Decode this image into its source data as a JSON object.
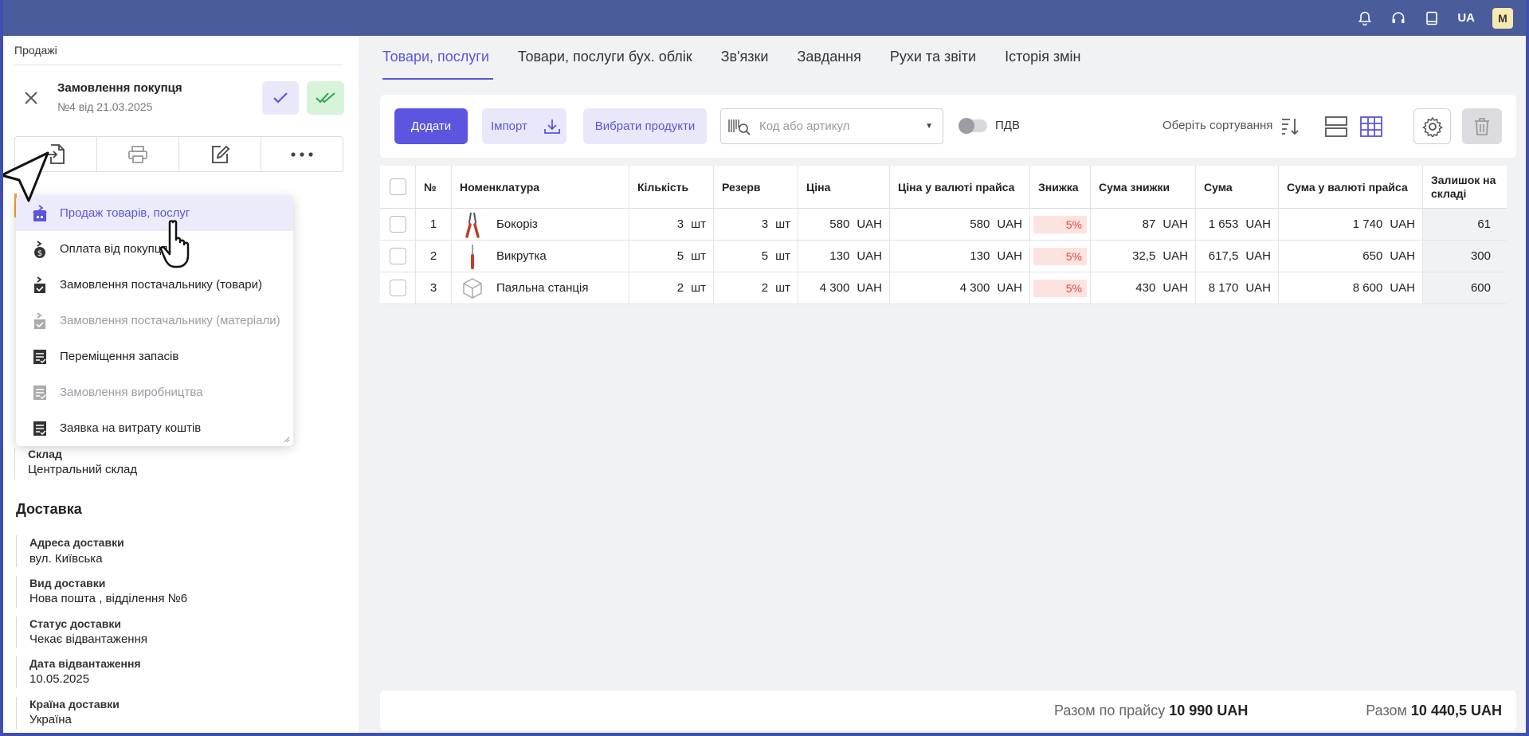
{
  "topbar": {
    "lang": "UA",
    "avatar": "M",
    "icons": [
      "bell-icon",
      "headset-icon",
      "book-icon"
    ]
  },
  "left": {
    "breadcrumb": "Продажі",
    "doc_title": "Замовлення покупця",
    "doc_subtitle": "№4 від 21.03.2025",
    "warehouse_label": "Склад",
    "warehouse_value": "Центральний склад",
    "delivery_title": "Доставка",
    "delivery": [
      {
        "label": "Адреса доставки",
        "value": "вул. Київська"
      },
      {
        "label": "Вид доставки",
        "value": "Нова пошта , відділення №6"
      },
      {
        "label": "Статус доставки",
        "value": "Чекає відвантаження"
      },
      {
        "label": "Дата відвантаження",
        "value": "10.05.2025"
      },
      {
        "label": "Країна доставки",
        "value": "Україна"
      }
    ]
  },
  "menu": {
    "items": [
      {
        "label": "Продаж товарів, послуг",
        "state": "active"
      },
      {
        "label": "Оплата від покупця",
        "state": "normal"
      },
      {
        "label": "Замовлення постачальнику (товари)",
        "state": "normal"
      },
      {
        "label": "Замовлення постачальнику (матеріали)",
        "state": "disabled"
      },
      {
        "label": "Переміщення запасів",
        "state": "normal"
      },
      {
        "label": "Замовлення виробництва",
        "state": "disabled"
      },
      {
        "label": "Заявка на витрату коштів",
        "state": "normal"
      }
    ]
  },
  "tabs": [
    "Товари, послуги",
    "Товари, послуги бух. облік",
    "Зв'язки",
    "Завдання",
    "Рухи та звіти",
    "Історія змін"
  ],
  "toolbar": {
    "add_label": "Додати",
    "import_label": "Імпорт",
    "choose_label": "Вибрати продукти",
    "search_placeholder": "Код або артикул",
    "vat_label": "ПДВ",
    "sort_label": "Оберіть сортування"
  },
  "table": {
    "headers": [
      "№",
      "Номенклатура",
      "Кількість",
      "Резерв",
      "Ціна",
      "Ціна у валюті прайса",
      "Знижка",
      "Сума знижки",
      "Сума",
      "Сума у валюті прайса",
      "Залишок на складі"
    ],
    "rows": [
      {
        "n": "1",
        "name": "Бокоріз",
        "icon": "pliers-icon",
        "qty": "3",
        "qty_unit": "шт",
        "reserve": "3",
        "reserve_unit": "шт",
        "price": "580",
        "cur": "UAH",
        "price_list": "580",
        "discount": "5%",
        "disc_sum": "87",
        "sum": "1 653",
        "sum_list": "1 740",
        "stock": "61"
      },
      {
        "n": "2",
        "name": "Викрутка",
        "icon": "screwdriver-icon",
        "qty": "5",
        "qty_unit": "шт",
        "reserve": "5",
        "reserve_unit": "шт",
        "price": "130",
        "cur": "UAH",
        "price_list": "130",
        "discount": "5%",
        "disc_sum": "32,5",
        "sum": "617,5",
        "sum_list": "650",
        "stock": "300"
      },
      {
        "n": "3",
        "name": "Паяльна станція",
        "icon": "box-icon",
        "qty": "2",
        "qty_unit": "шт",
        "reserve": "2",
        "reserve_unit": "шт",
        "price": "4 300",
        "cur": "UAH",
        "price_list": "4 300",
        "discount": "5%",
        "disc_sum": "430",
        "sum": "8 170",
        "sum_list": "8 600",
        "stock": "600"
      }
    ]
  },
  "footer": {
    "total_list_label": "Разом по прайсу",
    "total_list_value": "10 990 UAH",
    "total_label": "Разом",
    "total_value": "10 440,5 UAH"
  },
  "colors": {
    "accent": "#5b55e0",
    "topbar": "#4a5c9b",
    "discount_bg": "#fde3e0",
    "discount_text": "#e0463a"
  }
}
